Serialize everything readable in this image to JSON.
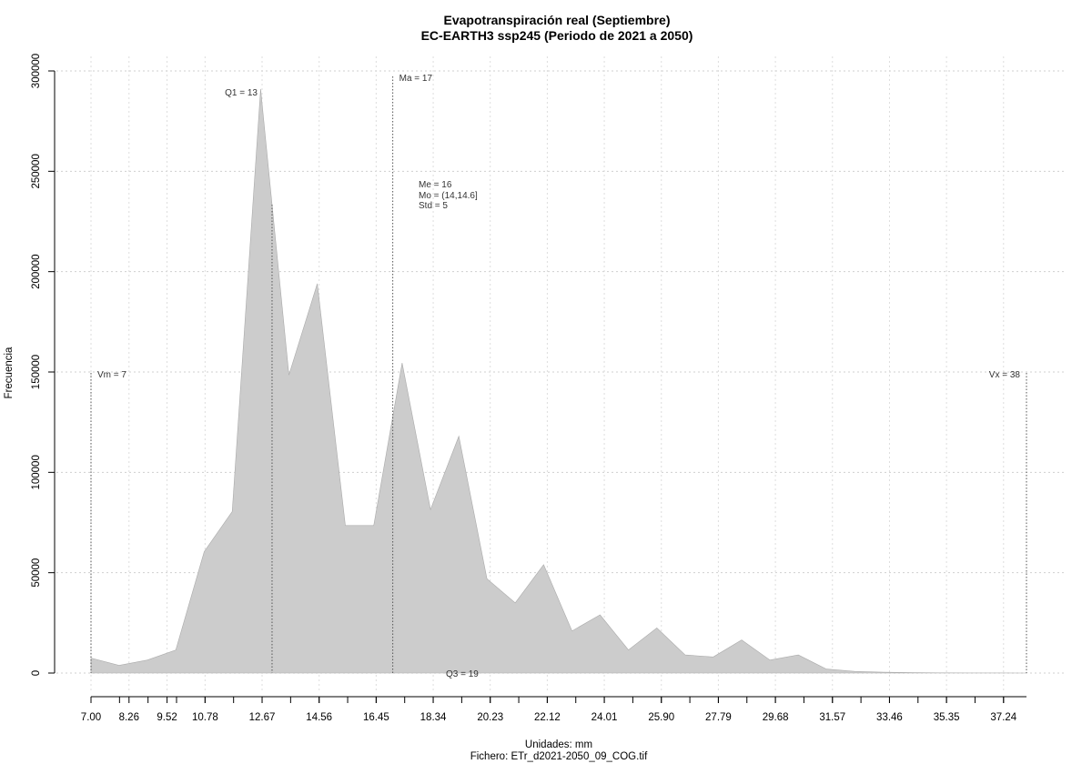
{
  "chart_data": {
    "type": "area",
    "title": "Evapotranspiración real (Septiembre)",
    "subtitle": "EC-EARTH3 ssp245 (Periodo de 2021 a 2050)",
    "xlabel": "Unidades: mm",
    "ylabel": "Frecuencia",
    "caption": "Fichero: ETr_d2021-2050_09_COG.tif",
    "xlim": [
      7.0,
      38.0
    ],
    "ylim": [
      0,
      300000
    ],
    "grid": true,
    "fill_color": "#cccccc",
    "x_tick_labels": [
      "7.00",
      "8.26",
      "9.52",
      "10.78",
      "12.67",
      "14.56",
      "16.45",
      "18.34",
      "20.23",
      "22.12",
      "24.01",
      "25.90",
      "27.79",
      "29.68",
      "31.57",
      "33.46",
      "35.35",
      "37.24"
    ],
    "x_tick_values": [
      7.0,
      8.26,
      9.52,
      10.78,
      12.67,
      14.56,
      16.45,
      18.34,
      20.23,
      22.12,
      24.01,
      25.9,
      27.79,
      29.68,
      31.57,
      33.46,
      35.35,
      37.24
    ],
    "y_tick_labels": [
      "0",
      "50000",
      "100000",
      "150000",
      "200000",
      "250000",
      "300000"
    ],
    "y_tick_values": [
      0,
      50000,
      100000,
      150000,
      200000,
      250000,
      300000
    ],
    "x": [
      7.0,
      7.93,
      8.87,
      9.81,
      10.75,
      11.68,
      12.62,
      13.56,
      14.5,
      15.43,
      16.37,
      17.31,
      18.25,
      19.19,
      20.12,
      21.06,
      22.0,
      22.94,
      23.87,
      24.81,
      25.75,
      26.69,
      27.62,
      28.56,
      29.5,
      30.44,
      31.37,
      32.31,
      33.25,
      34.19,
      35.12,
      36.06,
      37.0,
      38.0
    ],
    "y": [
      7500,
      3800,
      6500,
      11500,
      60500,
      80500,
      291000,
      148500,
      194000,
      73500,
      73500,
      154500,
      81500,
      118000,
      47000,
      35000,
      54000,
      21000,
      29000,
      11500,
      22500,
      9000,
      8000,
      16500,
      6500,
      9000,
      2000,
      800,
      400,
      200,
      100,
      50,
      30,
      10
    ],
    "markers": [
      {
        "value": 7,
        "label": "Vm = 7",
        "style": "dotted"
      },
      {
        "value": 13,
        "label": "Q1 = 13",
        "style": "dotted"
      },
      {
        "value": 17,
        "label": "Ma = 17",
        "style": "dotted"
      },
      {
        "value": 19,
        "label": "Q3 = 19",
        "style": "dotted"
      },
      {
        "value": 38,
        "label": "Vx = 38",
        "style": "dotted"
      }
    ],
    "stats_box": {
      "lines": [
        "Me = 16",
        "Mo = (14,14.6]",
        "Std = 5"
      ]
    }
  }
}
